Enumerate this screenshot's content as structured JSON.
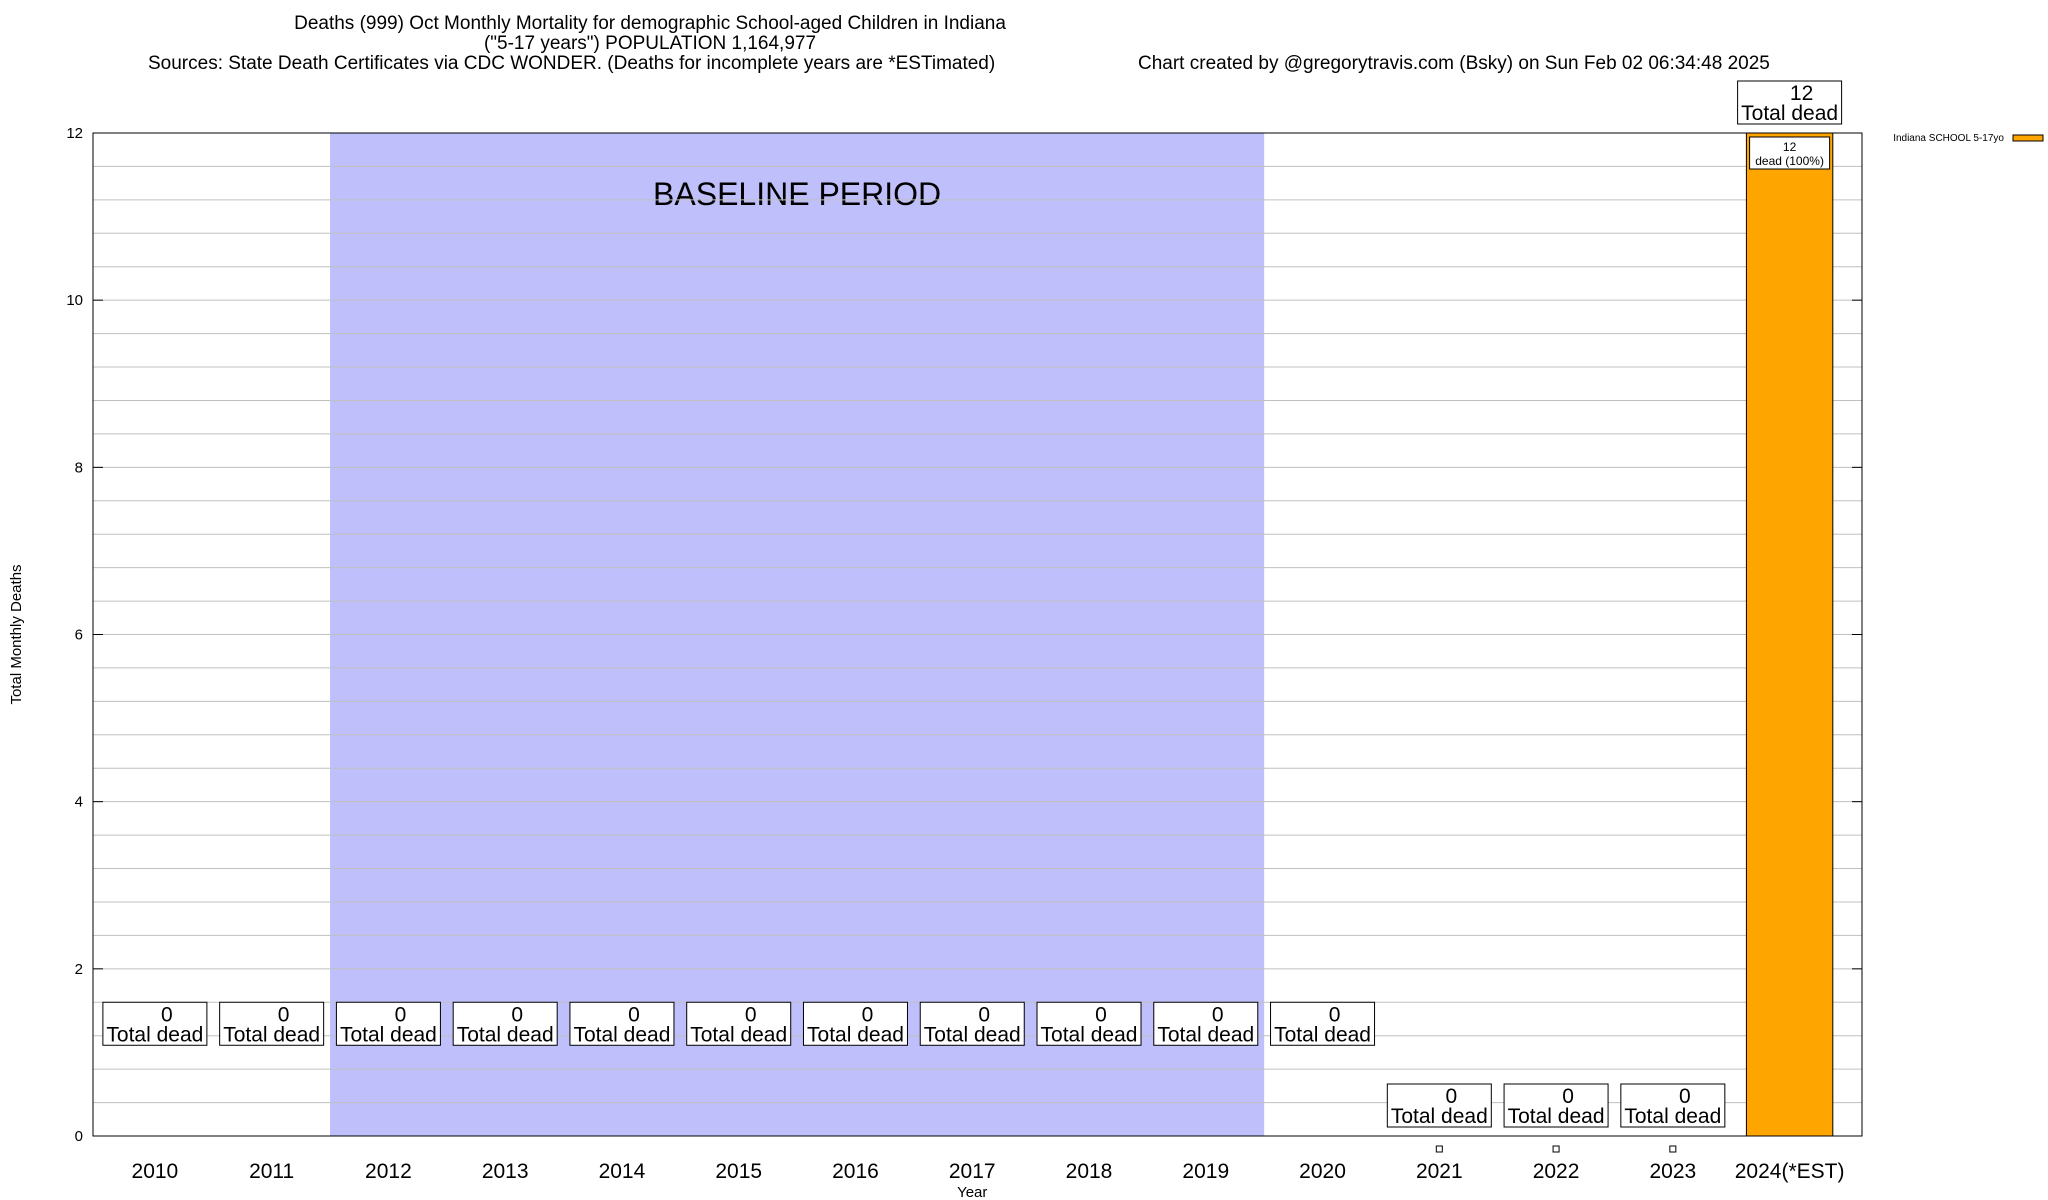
{
  "title": {
    "line1": "Deaths (999) Oct Monthly Mortality for demographic School-aged Children in Indiana",
    "line2": "(\"5-17 years\") POPULATION 1,164,977",
    "sources": "Sources: State Death Certificates via CDC WONDER. (Deaths for incomplete years are *ESTimated)",
    "credit": "Chart created by @gregorytravis.com (Bsky) on Sun Feb 02 06:34:48 2025"
  },
  "colors": {
    "bar": "#ffa500",
    "baseline_band": "#bfbffb",
    "grid": "#c0c0c0"
  },
  "chart_data": {
    "type": "bar",
    "title": "Deaths (999) Oct Monthly Mortality for demographic School-aged Children in Indiana",
    "xlabel": "Year",
    "ylabel": "Total Monthly Deaths",
    "ylim": [
      0,
      12
    ],
    "yticks": [
      0,
      2,
      4,
      6,
      8,
      10,
      12
    ],
    "grid": true,
    "categories": [
      "2010",
      "2011",
      "2012",
      "2013",
      "2014",
      "2015",
      "2016",
      "2017",
      "2018",
      "2019",
      "2020",
      "2021",
      "2022",
      "2023",
      "2024(*EST)"
    ],
    "series": [
      {
        "name": "Indiana SCHOOL 5-17yo",
        "values": [
          null,
          null,
          null,
          null,
          null,
          null,
          null,
          null,
          null,
          null,
          null,
          0,
          0,
          0,
          12
        ]
      }
    ],
    "total_labels": [
      "0",
      "0",
      "0",
      "0",
      "0",
      "0",
      "0",
      "0",
      "0",
      "0",
      "0",
      "0",
      "0",
      "0",
      "12"
    ],
    "total_suffix": "Total dead",
    "bar_inner_label": {
      "line1": "12",
      "line2": "dead (100%)"
    },
    "baseline_period": {
      "label": "BASELINE PERIOD",
      "from": "2012",
      "to": "2019"
    },
    "legend": {
      "position": "top-right",
      "entries": [
        "Indiana SCHOOL 5-17yo"
      ]
    }
  }
}
